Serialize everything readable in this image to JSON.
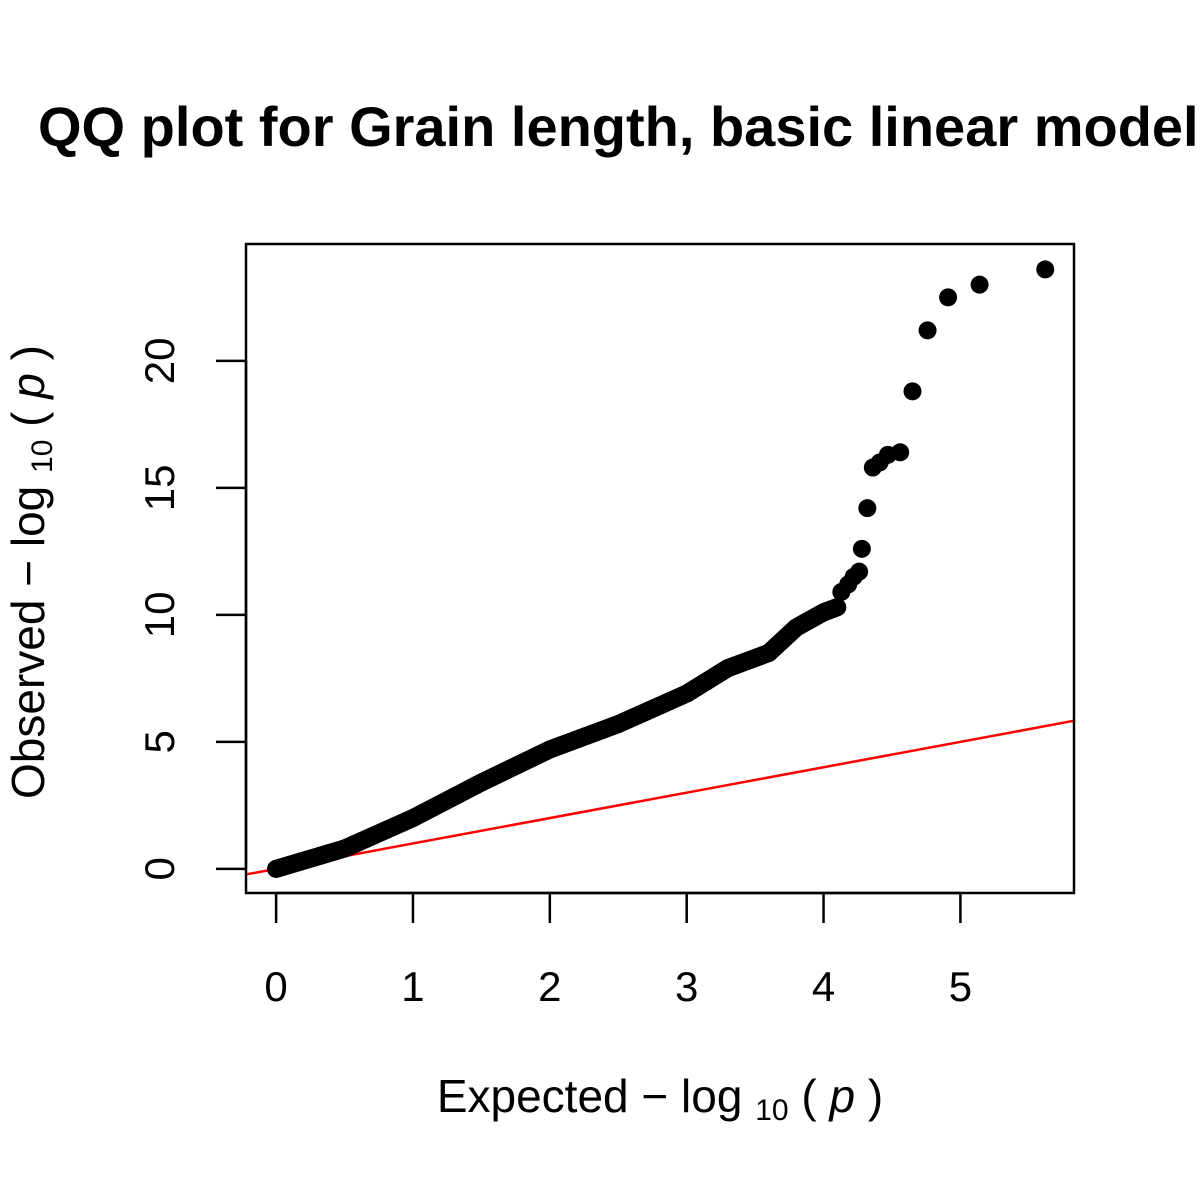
{
  "chart_data": {
    "type": "scatter",
    "title": "QQ plot for Grain length, basic linear model",
    "xlabel": {
      "prefix": "Expected ",
      "minus": "−",
      "log": "log",
      "base": "10",
      "open": "(",
      "var": "p",
      "close": ")"
    },
    "ylabel": {
      "prefix": "Observed ",
      "minus": "−",
      "log": "log",
      "base": "10",
      "open": "(",
      "var": "p",
      "close": ")"
    },
    "xlim": [
      -0.22,
      5.83
    ],
    "ylim": [
      -0.95,
      24.6
    ],
    "x_ticks": [
      0,
      1,
      2,
      3,
      4,
      5
    ],
    "x_tick_labels": [
      "0",
      "1",
      "2",
      "3",
      "4",
      "5"
    ],
    "y_ticks": [
      0,
      5,
      10,
      15,
      20
    ],
    "y_tick_labels": [
      "0",
      "5",
      "10",
      "15",
      "20"
    ],
    "reference_line": {
      "slope": 1,
      "intercept": 0,
      "color": "#ff0000"
    },
    "point_color": "#000000",
    "grid": false,
    "curve_points": [
      {
        "x": 0.0,
        "y": 0.0
      },
      {
        "x": 0.5,
        "y": 0.8
      },
      {
        "x": 1.0,
        "y": 2.0
      },
      {
        "x": 1.5,
        "y": 3.4
      },
      {
        "x": 2.0,
        "y": 4.7
      },
      {
        "x": 2.5,
        "y": 5.7
      },
      {
        "x": 3.0,
        "y": 6.9
      },
      {
        "x": 3.3,
        "y": 7.9
      },
      {
        "x": 3.6,
        "y": 8.5
      },
      {
        "x": 3.8,
        "y": 9.5
      },
      {
        "x": 4.0,
        "y": 10.1
      },
      {
        "x": 4.1,
        "y": 10.3
      }
    ],
    "points": [
      {
        "x": 4.13,
        "y": 10.9
      },
      {
        "x": 4.18,
        "y": 11.2
      },
      {
        "x": 4.22,
        "y": 11.5
      },
      {
        "x": 4.26,
        "y": 11.7
      },
      {
        "x": 4.28,
        "y": 12.6
      },
      {
        "x": 4.32,
        "y": 14.2
      },
      {
        "x": 4.36,
        "y": 15.8
      },
      {
        "x": 4.41,
        "y": 16.0
      },
      {
        "x": 4.47,
        "y": 16.3
      },
      {
        "x": 4.56,
        "y": 16.4
      },
      {
        "x": 4.65,
        "y": 18.8
      },
      {
        "x": 4.76,
        "y": 21.2
      },
      {
        "x": 4.91,
        "y": 22.5
      },
      {
        "x": 5.14,
        "y": 23.0
      },
      {
        "x": 5.62,
        "y": 23.6
      }
    ]
  }
}
